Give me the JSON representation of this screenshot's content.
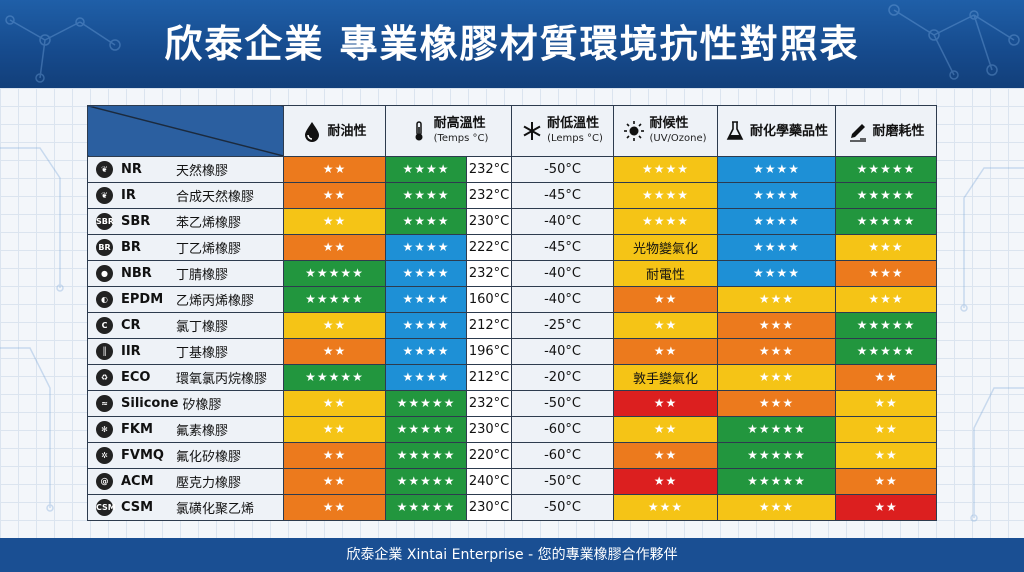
{
  "title": "欣泰企業 專業橡膠材質環境抗性對照表",
  "footer": "欣泰企業 Xintai Enterprise - 您的專業橡膠合作夥伴",
  "colors": {
    "green": "#22963e",
    "blue": "#1e90d6",
    "yellow": "#f5c416",
    "orange": "#ec7a1d",
    "red": "#dc1f1f",
    "header": "#1a4f93"
  },
  "headers": {
    "oil": {
      "label": "耐油性",
      "icon": "oil-drop-icon"
    },
    "high_temp": {
      "label": "耐高溫性",
      "sub": "(Temps °C)",
      "icon": "thermometer-icon"
    },
    "low_temp": {
      "label": "耐低溫性",
      "sub": "(Lemps °C)",
      "icon": "snowflake-icon"
    },
    "weather": {
      "label": "耐候性",
      "sub": "(UV/Ozone)",
      "icon": "sun-icon"
    },
    "chemical": {
      "label": "耐化學藥品性",
      "icon": "flask-icon"
    },
    "abrasion": {
      "label": "耐磨耗性",
      "icon": "pencil-wear-icon"
    }
  },
  "rows": [
    {
      "code": "NR",
      "name": "天然橡膠",
      "icon": "leaf-icon",
      "oil": {
        "v": "★★",
        "c": "orange"
      },
      "high": {
        "v": "★★★★",
        "c": "green"
      },
      "high_t": "232°C",
      "low": "-50°C",
      "weather": {
        "v": "★★★★",
        "c": "yellow"
      },
      "chem": {
        "v": "★★★★",
        "c": "blue"
      },
      "abr": {
        "v": "★★★★★",
        "c": "green"
      }
    },
    {
      "code": "IR",
      "name": "合成天然橡膠",
      "icon": "leaf-icon",
      "oil": {
        "v": "★★",
        "c": "orange"
      },
      "high": {
        "v": "★★★★",
        "c": "green"
      },
      "high_t": "232°C",
      "low": "-45°C",
      "weather": {
        "v": "★★★★",
        "c": "yellow"
      },
      "chem": {
        "v": "★★★★",
        "c": "blue"
      },
      "abr": {
        "v": "★★★★★",
        "c": "green"
      }
    },
    {
      "code": "SBR",
      "name": "苯乙烯橡膠",
      "icon": "sbr-badge-icon",
      "oil": {
        "v": "★★",
        "c": "yellow"
      },
      "high": {
        "v": "★★★★",
        "c": "green"
      },
      "high_t": "230°C",
      "low": "-40°C",
      "weather": {
        "v": "★★★★",
        "c": "yellow"
      },
      "chem": {
        "v": "★★★★",
        "c": "blue"
      },
      "abr": {
        "v": "★★★★★",
        "c": "green"
      }
    },
    {
      "code": "BR",
      "name": "丁乙烯橡膠",
      "icon": "br-badge-icon",
      "oil": {
        "v": "★★",
        "c": "orange"
      },
      "high": {
        "v": "★★★★",
        "c": "blue"
      },
      "high_t": "222°C",
      "low": "-45°C",
      "weather": {
        "v": "光物變氣化",
        "c": "yellow"
      },
      "chem": {
        "v": "★★★★",
        "c": "blue"
      },
      "abr": {
        "v": "★★★",
        "c": "yellow"
      }
    },
    {
      "code": "NBR",
      "name": "丁腈橡膠",
      "icon": "drop-icon",
      "oil": {
        "v": "★★★★★",
        "c": "green"
      },
      "high": {
        "v": "★★★★",
        "c": "blue"
      },
      "high_t": "232°C",
      "low": "-40°C",
      "weather": {
        "v": "耐電性",
        "c": "yellow"
      },
      "chem": {
        "v": "★★★★",
        "c": "blue"
      },
      "abr": {
        "v": "★★★",
        "c": "orange"
      }
    },
    {
      "code": "EPDM",
      "name": "乙烯丙烯橡膠",
      "icon": "capsule-icon",
      "oil": {
        "v": "★★★★★",
        "c": "green"
      },
      "high": {
        "v": "★★★★",
        "c": "blue"
      },
      "high_t": "160°C",
      "low": "-40°C",
      "weather": {
        "v": "★★",
        "c": "orange"
      },
      "chem": {
        "v": "★★★",
        "c": "yellow"
      },
      "abr": {
        "v": "★★★",
        "c": "yellow"
      }
    },
    {
      "code": "CR",
      "name": "氯丁橡膠",
      "icon": "c-badge-icon",
      "oil": {
        "v": "★★",
        "c": "yellow"
      },
      "high": {
        "v": "★★★★",
        "c": "blue"
      },
      "high_t": "212°C",
      "low": "-25°C",
      "weather": {
        "v": "★★",
        "c": "yellow"
      },
      "chem": {
        "v": "★★★",
        "c": "orange"
      },
      "abr": {
        "v": "★★★★★",
        "c": "green"
      }
    },
    {
      "code": "IIR",
      "name": "丁基橡膠",
      "icon": "bars-icon",
      "oil": {
        "v": "★★",
        "c": "orange"
      },
      "high": {
        "v": "★★★★",
        "c": "blue"
      },
      "high_t": "196°C",
      "low": "-40°C",
      "weather": {
        "v": "★★",
        "c": "orange"
      },
      "chem": {
        "v": "★★★",
        "c": "orange"
      },
      "abr": {
        "v": "★★★★★",
        "c": "green"
      }
    },
    {
      "code": "ECO",
      "name": "環氧氯丙烷橡膠",
      "icon": "recycle-icon",
      "oil": {
        "v": "★★★★★",
        "c": "green"
      },
      "high": {
        "v": "★★★★",
        "c": "blue"
      },
      "high_t": "212°C",
      "low": "-20°C",
      "weather": {
        "v": "敦手變氣化",
        "c": "yellow"
      },
      "chem": {
        "v": "★★★",
        "c": "yellow"
      },
      "abr": {
        "v": "★★",
        "c": "orange"
      }
    },
    {
      "code": "Silicone",
      "name": "矽橡膠",
      "icon": "silicone-icon",
      "oil": {
        "v": "★★",
        "c": "yellow"
      },
      "high": {
        "v": "★★★★★",
        "c": "green"
      },
      "high_t": "232°C",
      "low": "-50°C",
      "weather": {
        "v": "★★",
        "c": "red"
      },
      "chem": {
        "v": "★★★",
        "c": "orange"
      },
      "abr": {
        "v": "★★",
        "c": "yellow"
      }
    },
    {
      "code": "FKM",
      "name": "氟素橡膠",
      "icon": "snowflake-badge-icon",
      "oil": {
        "v": "★★",
        "c": "yellow"
      },
      "high": {
        "v": "★★★★★",
        "c": "green"
      },
      "high_t": "230°C",
      "low": "-60°C",
      "weather": {
        "v": "★★",
        "c": "yellow"
      },
      "chem": {
        "v": "★★★★★",
        "c": "green"
      },
      "abr": {
        "v": "★★",
        "c": "yellow"
      }
    },
    {
      "code": "FVMQ",
      "name": "氟化矽橡膠",
      "icon": "gear-badge-icon",
      "oil": {
        "v": "★★",
        "c": "orange"
      },
      "high": {
        "v": "★★★★★",
        "c": "green"
      },
      "high_t": "220°C",
      "low": "-60°C",
      "weather": {
        "v": "★★",
        "c": "orange"
      },
      "chem": {
        "v": "★★★★★",
        "c": "green"
      },
      "abr": {
        "v": "★★",
        "c": "yellow"
      }
    },
    {
      "code": "ACM",
      "name": "壓克力橡膠",
      "icon": "swirl-icon",
      "oil": {
        "v": "★★",
        "c": "orange"
      },
      "high": {
        "v": "★★★★★",
        "c": "green"
      },
      "high_t": "240°C",
      "low": "-50°C",
      "weather": {
        "v": "★★",
        "c": "red"
      },
      "chem": {
        "v": "★★★★★",
        "c": "green"
      },
      "abr": {
        "v": "★★",
        "c": "orange"
      }
    },
    {
      "code": "CSM",
      "name": "氯磺化聚乙烯",
      "icon": "csm-badge-icon",
      "oil": {
        "v": "★★",
        "c": "orange"
      },
      "high": {
        "v": "★★★★★",
        "c": "green"
      },
      "high_t": "230°C",
      "low": "-50°C",
      "weather": {
        "v": "★★★",
        "c": "yellow"
      },
      "chem": {
        "v": "★★★",
        "c": "yellow"
      },
      "abr": {
        "v": "★★",
        "c": "red"
      }
    }
  ]
}
